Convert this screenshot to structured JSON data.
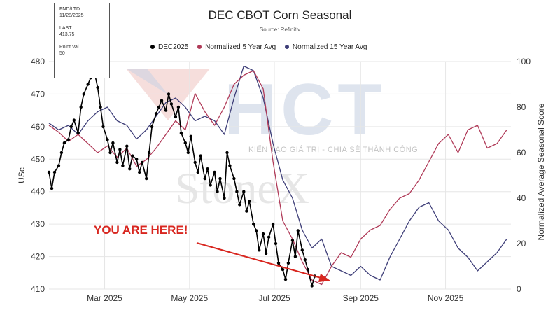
{
  "info_box": {
    "fnd_ltd_label": "FND/LTD",
    "fnd_ltd_date": "11/28/2025",
    "last_label": "LAST",
    "last_value": "413.75",
    "point_val_label": "Point Val.",
    "point_val_value": "50"
  },
  "watermark": {
    "logo_text": "HCT",
    "tagline": "KIẾN TẠO GIÁ TRỊ - CHIA SẺ THÀNH CÔNG",
    "brand": "StoneX"
  },
  "annotation": {
    "text": "YOU ARE HERE!"
  },
  "colors": {
    "dec2025": "#000000",
    "avg5": "#b03a58",
    "avg15": "#3e3e78",
    "annotation": "#d8261f",
    "watermark_red": "#e8b4b2",
    "watermark_blue": "#c8d2e4"
  },
  "chart_data": {
    "type": "line",
    "title": "DEC CBOT Corn Seasonal",
    "subtitle": "Source: Refinitiv",
    "ylabel": "USc",
    "y2label": "Normalized Average Seasonal Score",
    "ylim": [
      410,
      480
    ],
    "y2lim": [
      0,
      100
    ],
    "xlim": [
      "2025-01-20",
      "2025-12-18"
    ],
    "yticks": [
      410,
      420,
      430,
      440,
      450,
      460,
      470,
      480
    ],
    "y2ticks": [
      0,
      20,
      40,
      60,
      80,
      100
    ],
    "xticks": [
      {
        "date": "2025-03-01",
        "label": "Mar 2025"
      },
      {
        "date": "2025-05-01",
        "label": "May 2025"
      },
      {
        "date": "2025-07-01",
        "label": "Jul 2025"
      },
      {
        "date": "2025-09-01",
        "label": "Sep 2025"
      },
      {
        "date": "2025-11-01",
        "label": "Nov 2025"
      }
    ],
    "grid": true,
    "legend_position": "top-center",
    "series": [
      {
        "name": "DEC2025",
        "axis": "left",
        "marker": "dot",
        "points": [
          [
            "2025-01-20",
            446
          ],
          [
            "2025-01-22",
            441
          ],
          [
            "2025-01-24",
            446
          ],
          [
            "2025-01-27",
            448
          ],
          [
            "2025-01-29",
            452
          ],
          [
            "2025-01-31",
            455
          ],
          [
            "2025-02-03",
            456
          ],
          [
            "2025-02-05",
            460
          ],
          [
            "2025-02-07",
            462
          ],
          [
            "2025-02-10",
            458
          ],
          [
            "2025-02-12",
            466
          ],
          [
            "2025-02-14",
            470
          ],
          [
            "2025-02-17",
            473
          ],
          [
            "2025-02-19",
            475
          ],
          [
            "2025-02-21",
            478
          ],
          [
            "2025-02-24",
            472
          ],
          [
            "2025-02-26",
            466
          ],
          [
            "2025-02-28",
            460
          ],
          [
            "2025-03-03",
            456
          ],
          [
            "2025-03-05",
            452
          ],
          [
            "2025-03-07",
            455
          ],
          [
            "2025-03-10",
            449
          ],
          [
            "2025-03-12",
            453
          ],
          [
            "2025-03-14",
            448
          ],
          [
            "2025-03-17",
            454
          ],
          [
            "2025-03-19",
            447
          ],
          [
            "2025-03-21",
            451
          ],
          [
            "2025-03-24",
            450
          ],
          [
            "2025-03-26",
            446
          ],
          [
            "2025-03-28",
            449
          ],
          [
            "2025-03-31",
            444
          ],
          [
            "2025-04-02",
            452
          ],
          [
            "2025-04-04",
            460
          ],
          [
            "2025-04-07",
            464
          ],
          [
            "2025-04-09",
            466
          ],
          [
            "2025-04-11",
            468
          ],
          [
            "2025-04-14",
            465
          ],
          [
            "2025-04-16",
            470
          ],
          [
            "2025-04-18",
            467
          ],
          [
            "2025-04-21",
            463
          ],
          [
            "2025-04-23",
            466
          ],
          [
            "2025-04-25",
            458
          ],
          [
            "2025-04-28",
            455
          ],
          [
            "2025-04-30",
            452
          ],
          [
            "2025-05-02",
            457
          ],
          [
            "2025-05-05",
            449
          ],
          [
            "2025-05-07",
            446
          ],
          [
            "2025-05-09",
            451
          ],
          [
            "2025-05-12",
            444
          ],
          [
            "2025-05-14",
            447
          ],
          [
            "2025-05-16",
            442
          ],
          [
            "2025-05-19",
            446
          ],
          [
            "2025-05-21",
            440
          ],
          [
            "2025-05-23",
            444
          ],
          [
            "2025-05-26",
            438
          ],
          [
            "2025-05-28",
            452
          ],
          [
            "2025-05-30",
            448
          ],
          [
            "2025-06-02",
            444
          ],
          [
            "2025-06-04",
            440
          ],
          [
            "2025-06-06",
            436
          ],
          [
            "2025-06-09",
            440
          ],
          [
            "2025-06-11",
            434
          ],
          [
            "2025-06-13",
            437
          ],
          [
            "2025-06-16",
            430
          ],
          [
            "2025-06-18",
            428
          ],
          [
            "2025-06-20",
            422
          ],
          [
            "2025-06-23",
            427
          ],
          [
            "2025-06-25",
            421
          ],
          [
            "2025-06-27",
            426
          ],
          [
            "2025-06-30",
            430
          ],
          [
            "2025-07-02",
            424
          ],
          [
            "2025-07-04",
            418
          ],
          [
            "2025-07-07",
            416
          ],
          [
            "2025-07-09",
            413
          ],
          [
            "2025-07-11",
            418
          ],
          [
            "2025-07-14",
            425
          ],
          [
            "2025-07-16",
            420
          ],
          [
            "2025-07-18",
            428
          ],
          [
            "2025-07-21",
            422
          ],
          [
            "2025-07-23",
            419
          ],
          [
            "2025-07-25",
            416
          ],
          [
            "2025-07-28",
            411
          ],
          [
            "2025-07-30",
            414
          ]
        ]
      },
      {
        "name": "Normalized 5 Year Avg",
        "axis": "right",
        "points": [
          [
            "2025-01-20",
            72
          ],
          [
            "2025-01-27",
            69
          ],
          [
            "2025-02-03",
            65
          ],
          [
            "2025-02-10",
            68
          ],
          [
            "2025-02-17",
            64
          ],
          [
            "2025-02-24",
            60
          ],
          [
            "2025-03-03",
            63
          ],
          [
            "2025-03-10",
            58
          ],
          [
            "2025-03-17",
            62
          ],
          [
            "2025-03-24",
            54
          ],
          [
            "2025-03-31",
            57
          ],
          [
            "2025-04-07",
            62
          ],
          [
            "2025-04-14",
            68
          ],
          [
            "2025-04-21",
            74
          ],
          [
            "2025-04-28",
            70
          ],
          [
            "2025-05-05",
            86
          ],
          [
            "2025-05-12",
            78
          ],
          [
            "2025-05-19",
            72
          ],
          [
            "2025-05-26",
            80
          ],
          [
            "2025-06-02",
            90
          ],
          [
            "2025-06-09",
            94
          ],
          [
            "2025-06-16",
            96
          ],
          [
            "2025-06-23",
            88
          ],
          [
            "2025-06-30",
            56
          ],
          [
            "2025-07-07",
            30
          ],
          [
            "2025-07-14",
            22
          ],
          [
            "2025-07-21",
            12
          ],
          [
            "2025-07-28",
            4
          ],
          [
            "2025-08-04",
            2
          ],
          [
            "2025-08-11",
            10
          ],
          [
            "2025-08-18",
            16
          ],
          [
            "2025-08-25",
            14
          ],
          [
            "2025-09-01",
            22
          ],
          [
            "2025-09-08",
            26
          ],
          [
            "2025-09-15",
            28
          ],
          [
            "2025-09-22",
            35
          ],
          [
            "2025-09-29",
            40
          ],
          [
            "2025-10-06",
            42
          ],
          [
            "2025-10-13",
            48
          ],
          [
            "2025-10-20",
            56
          ],
          [
            "2025-10-27",
            64
          ],
          [
            "2025-11-03",
            68
          ],
          [
            "2025-11-10",
            60
          ],
          [
            "2025-11-17",
            70
          ],
          [
            "2025-11-24",
            72
          ],
          [
            "2025-12-01",
            62
          ],
          [
            "2025-12-08",
            64
          ],
          [
            "2025-12-15",
            70
          ]
        ]
      },
      {
        "name": "Normalized 15 Year Avg",
        "axis": "right",
        "points": [
          [
            "2025-01-20",
            73
          ],
          [
            "2025-01-27",
            70
          ],
          [
            "2025-02-03",
            72
          ],
          [
            "2025-02-10",
            68
          ],
          [
            "2025-02-17",
            74
          ],
          [
            "2025-02-24",
            78
          ],
          [
            "2025-03-03",
            80
          ],
          [
            "2025-03-10",
            74
          ],
          [
            "2025-03-17",
            72
          ],
          [
            "2025-03-24",
            66
          ],
          [
            "2025-03-31",
            70
          ],
          [
            "2025-04-07",
            76
          ],
          [
            "2025-04-14",
            82
          ],
          [
            "2025-04-21",
            84
          ],
          [
            "2025-04-28",
            80
          ],
          [
            "2025-05-05",
            74
          ],
          [
            "2025-05-12",
            76
          ],
          [
            "2025-05-19",
            74
          ],
          [
            "2025-05-26",
            68
          ],
          [
            "2025-06-02",
            84
          ],
          [
            "2025-06-09",
            98
          ],
          [
            "2025-06-16",
            96
          ],
          [
            "2025-06-23",
            84
          ],
          [
            "2025-06-30",
            64
          ],
          [
            "2025-07-07",
            48
          ],
          [
            "2025-07-14",
            40
          ],
          [
            "2025-07-21",
            26
          ],
          [
            "2025-07-28",
            18
          ],
          [
            "2025-08-04",
            22
          ],
          [
            "2025-08-11",
            10
          ],
          [
            "2025-08-18",
            8
          ],
          [
            "2025-08-25",
            6
          ],
          [
            "2025-09-01",
            10
          ],
          [
            "2025-09-08",
            6
          ],
          [
            "2025-09-15",
            4
          ],
          [
            "2025-09-22",
            14
          ],
          [
            "2025-09-29",
            22
          ],
          [
            "2025-10-06",
            30
          ],
          [
            "2025-10-13",
            36
          ],
          [
            "2025-10-20",
            38
          ],
          [
            "2025-10-27",
            30
          ],
          [
            "2025-11-03",
            26
          ],
          [
            "2025-11-10",
            18
          ],
          [
            "2025-11-17",
            14
          ],
          [
            "2025-11-24",
            8
          ],
          [
            "2025-12-01",
            12
          ],
          [
            "2025-12-08",
            16
          ],
          [
            "2025-12-15",
            22
          ]
        ]
      }
    ]
  }
}
